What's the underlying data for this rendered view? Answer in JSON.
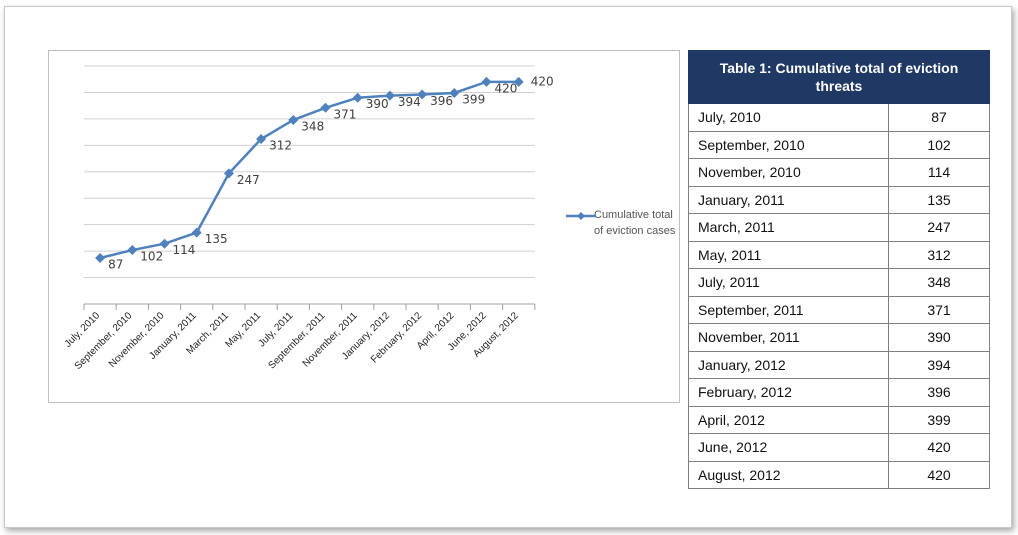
{
  "chart_data": {
    "type": "line",
    "categories": [
      "July, 2010",
      "September, 2010",
      "November, 2010",
      "January, 2011",
      "March, 2011",
      "May, 2011",
      "July, 2011",
      "September, 2011",
      "November, 2011",
      "January, 2012",
      "February, 2012",
      "April, 2012",
      "June, 2012",
      "August, 2012"
    ],
    "series": [
      {
        "name": "Cumulative total of eviction cases",
        "color": "#4f81bd",
        "values": [
          87,
          102,
          114,
          135,
          247,
          312,
          348,
          371,
          390,
          394,
          396,
          399,
          420,
          420
        ]
      }
    ],
    "ylim": [
      0,
      450
    ],
    "yticks": [
      0,
      50,
      100,
      150,
      200,
      250,
      300,
      350,
      400,
      450
    ],
    "grid": true,
    "legend": "right"
  },
  "table": {
    "title": "Table 1: Cumulative total of eviction threats",
    "rows": [
      [
        "July, 2010",
        "87"
      ],
      [
        "September, 2010",
        "102"
      ],
      [
        "November, 2010",
        "114"
      ],
      [
        "January, 2011",
        "135"
      ],
      [
        "March, 2011",
        "247"
      ],
      [
        "May, 2011",
        "312"
      ],
      [
        "July, 2011",
        "348"
      ],
      [
        "September, 2011",
        "371"
      ],
      [
        "November, 2011",
        "390"
      ],
      [
        "January, 2012",
        "394"
      ],
      [
        "February, 2012",
        "396"
      ],
      [
        "April, 2012",
        "399"
      ],
      [
        "June, 2012",
        "420"
      ],
      [
        "August, 2012",
        "420"
      ]
    ]
  }
}
